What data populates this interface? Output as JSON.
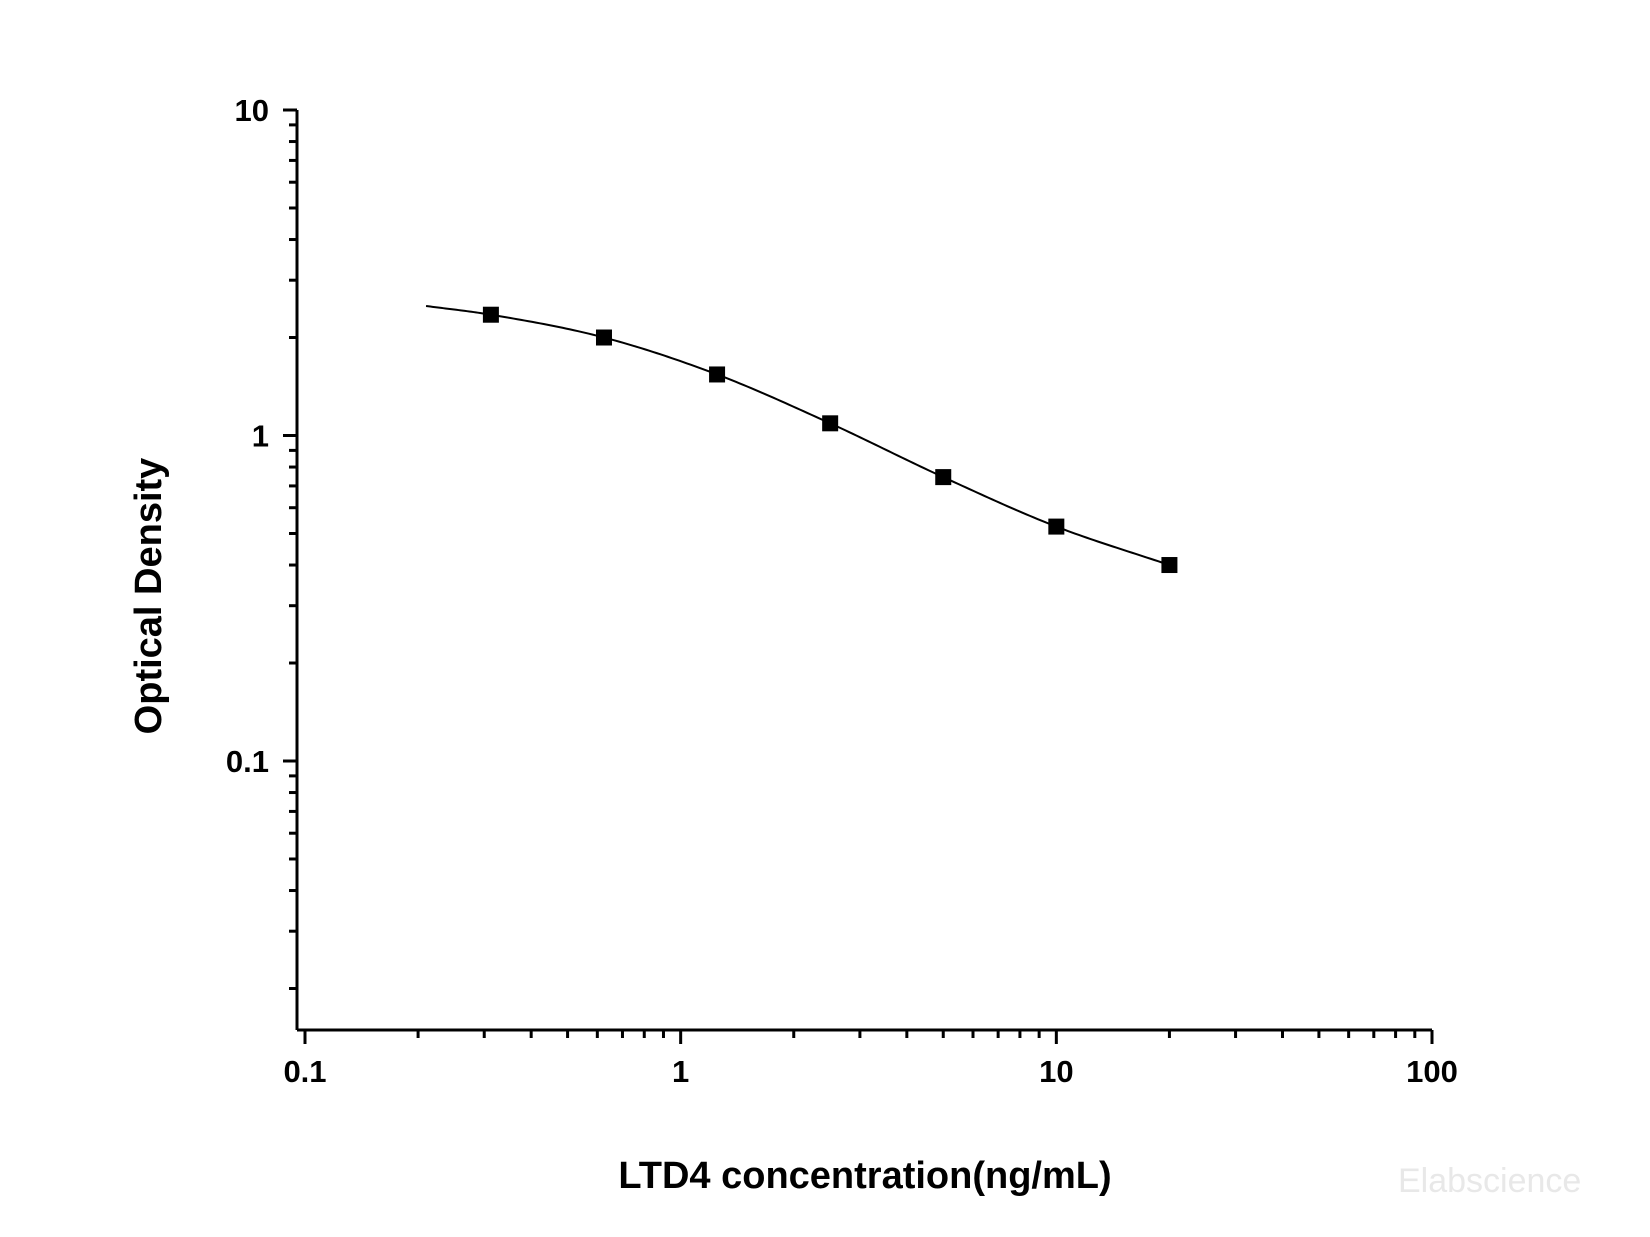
{
  "chart_data": {
    "type": "scatter",
    "title": "",
    "xlabel": "LTD4 concentration(ng/mL)",
    "ylabel": "Optical Density",
    "x_scale": "log",
    "y_scale": "log",
    "xlim": [
      0.1,
      100
    ],
    "ylim": [
      0.016,
      10
    ],
    "x_ticks": [
      "0.1",
      "1",
      "10",
      "100"
    ],
    "y_ticks": [
      "0.1",
      "1",
      "10"
    ],
    "grid": false,
    "legend": "none",
    "series": [
      {
        "marker": "square",
        "color": "#000000",
        "points": [
          {
            "x": 0.3125,
            "y": 2.35
          },
          {
            "x": 0.625,
            "y": 2.0
          },
          {
            "x": 1.25,
            "y": 1.54
          },
          {
            "x": 2.5,
            "y": 1.09
          },
          {
            "x": 5,
            "y": 0.745
          },
          {
            "x": 10,
            "y": 0.525
          },
          {
            "x": 20,
            "y": 0.4
          }
        ]
      }
    ],
    "fit_curve": {
      "color": "#000000",
      "x": [
        0.21,
        0.3125,
        0.625,
        1.25,
        2.5,
        5,
        10,
        20
      ],
      "y": [
        2.5,
        2.35,
        2.0,
        1.54,
        1.09,
        0.745,
        0.525,
        0.4
      ]
    }
  },
  "watermark": "Elabscience"
}
